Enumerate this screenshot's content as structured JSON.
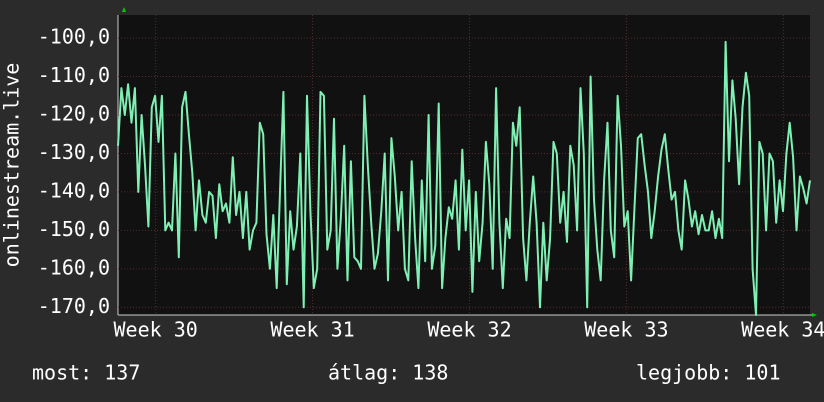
{
  "chart_data": {
    "type": "line",
    "y_label": "onlinestream.live",
    "xlim": [
      29.76,
      34.17
    ],
    "xticks": [
      {
        "value": 30,
        "label": "Week 30"
      },
      {
        "value": 31,
        "label": "Week 31"
      },
      {
        "value": 32,
        "label": "Week 32"
      },
      {
        "value": 33,
        "label": "Week 33"
      },
      {
        "value": 34,
        "label": "Week 34"
      }
    ],
    "ylim": [
      -172,
      -94
    ],
    "yticks": [
      {
        "value": -170,
        "label": "-170,0"
      },
      {
        "value": -160,
        "label": "-160,0"
      },
      {
        "value": -150,
        "label": "-150,0"
      },
      {
        "value": -140,
        "label": "-140,0"
      },
      {
        "value": -130,
        "label": "-130,0"
      },
      {
        "value": -120,
        "label": "-120,0"
      },
      {
        "value": -110,
        "label": "-110,0"
      },
      {
        "value": -100,
        "label": "-100,0"
      }
    ],
    "grid": true,
    "series": [
      {
        "color": "#7ff0b4",
        "values": [
          -128,
          -113,
          -120,
          -112,
          -122,
          -113,
          -140,
          -120,
          -133,
          -149,
          -118,
          -115,
          -127,
          -115,
          -150,
          -148,
          -150,
          -130,
          -157,
          -118,
          -114,
          -125,
          -135,
          -150,
          -137,
          -146,
          -148,
          -140,
          -141,
          -152,
          -138,
          -145,
          -143,
          -148,
          -131,
          -146,
          -140,
          -152,
          -140,
          -155,
          -150,
          -148,
          -122,
          -125,
          -151,
          -160,
          -146,
          -165,
          -140,
          -114,
          -164,
          -145,
          -155,
          -149,
          -130,
          -170,
          -115,
          -145,
          -165,
          -160,
          -114,
          -115,
          -155,
          -150,
          -121,
          -160,
          -147,
          -128,
          -163,
          -132,
          -157,
          -158,
          -160,
          -115,
          -133,
          -148,
          -160,
          -156,
          -145,
          -130,
          -163,
          -126,
          -136,
          -150,
          -140,
          -160,
          -163,
          -132,
          -152,
          -165,
          -137,
          -158,
          -120,
          -160,
          -154,
          -117,
          -165,
          -152,
          -144,
          -147,
          -137,
          -155,
          -129,
          -150,
          -137,
          -166,
          -140,
          -158,
          -148,
          -127,
          -138,
          -160,
          -113,
          -148,
          -165,
          -147,
          -152,
          -122,
          -128,
          -118,
          -152,
          -163,
          -148,
          -136,
          -148,
          -170,
          -148,
          -163,
          -152,
          -127,
          -130,
          -148,
          -140,
          -153,
          -128,
          -133,
          -150,
          -113,
          -130,
          -170,
          -110,
          -142,
          -155,
          -163,
          -137,
          -122,
          -150,
          -157,
          -115,
          -128,
          -149,
          -145,
          -163,
          -144,
          -126,
          -125,
          -133,
          -140,
          -152,
          -145,
          -136,
          -129,
          -125,
          -134,
          -142,
          -140,
          -150,
          -155,
          -137,
          -142,
          -149,
          -145,
          -151,
          -146,
          -150,
          -150,
          -145,
          -152,
          -147,
          -152,
          -101,
          -132,
          -111,
          -121,
          -138,
          -118,
          -109,
          -115,
          -160,
          -172,
          -127,
          -130,
          -150,
          -130,
          -132,
          -148,
          -137,
          -145,
          -130,
          -122,
          -131,
          -150,
          -136,
          -139,
          -143,
          -137
        ]
      }
    ],
    "footer": {
      "current": "most: 137",
      "average": "átlag: 138",
      "best": "legjobb: 101"
    }
  }
}
